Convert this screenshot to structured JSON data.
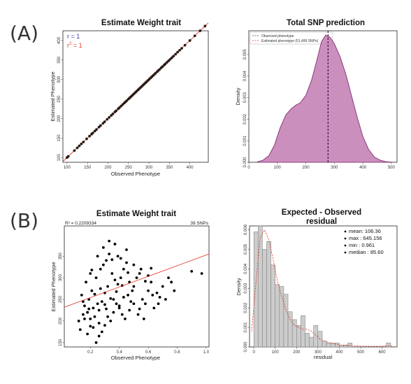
{
  "panels": {
    "a": "(A)",
    "b": "(B)"
  },
  "colors": {
    "red": "#e3412f",
    "dots": "#2b1a14",
    "purple": "#8b3b7a",
    "purplefill": "#b96aa8",
    "grey": "#cccccc",
    "annA": "#3b3bb0"
  },
  "chart_data": [
    {
      "id": "a1",
      "type": "scatter",
      "title": "Estimate Weight trait",
      "xlabel": "Observed Phenotype",
      "ylabel": "Estimated Phenotype",
      "xlim": [
        90,
        445
      ],
      "ylim": [
        88,
        425
      ],
      "xticks": [
        100,
        150,
        200,
        250,
        300,
        350,
        400
      ],
      "yticks": [
        100,
        150,
        200,
        250,
        300,
        350,
        400
      ],
      "annotations": {
        "r": "r = 1",
        "r2": "r",
        "r2_sup": "2",
        "r2_val": " = 1"
      },
      "fit_line": {
        "from": [
          90,
          90
        ],
        "to": [
          445,
          445
        ]
      },
      "points": [
        100,
        103,
        118,
        125,
        130,
        135,
        140,
        148,
        155,
        160,
        163,
        168,
        172,
        178,
        182,
        188,
        192,
        198,
        203,
        208,
        212,
        217,
        220,
        225,
        228,
        232,
        236,
        240,
        243,
        246,
        250,
        253,
        256,
        259,
        262,
        265,
        268,
        271,
        274,
        277,
        280,
        283,
        286,
        289,
        292,
        295,
        298,
        301,
        304,
        307,
        310,
        313,
        316,
        320,
        323,
        326,
        330,
        333,
        337,
        340,
        344,
        348,
        352,
        356,
        360,
        365,
        370,
        375,
        380,
        388,
        400,
        412,
        425,
        437
      ]
    },
    {
      "id": "a2",
      "type": "area",
      "title": "Total SNP prediction",
      "xlabel": "",
      "ylabel": "Density",
      "xlim": [
        0,
        520
      ],
      "ylim": [
        0,
        0.0061
      ],
      "xticks": [
        0,
        100,
        200,
        300,
        400,
        500
      ],
      "yticks": [
        0.0,
        0.001,
        0.002,
        0.003,
        0.004,
        0.005
      ],
      "ytick_labels": [
        "0.000",
        "0.001",
        "0.002",
        "0.003",
        "0.004",
        "0.005"
      ],
      "legend": [
        "Observed phenotype",
        "Estimated phenotype (51,499 SNPs)"
      ],
      "observed_line": 278,
      "x": [
        30,
        50,
        70,
        90,
        110,
        130,
        150,
        165,
        180,
        200,
        220,
        240,
        255,
        270,
        285,
        300,
        320,
        340,
        360,
        380,
        400,
        420,
        440,
        460,
        480,
        500
      ],
      "y": [
        2e-05,
        0.0001,
        0.0003,
        0.0008,
        0.0016,
        0.0022,
        0.0025,
        0.00265,
        0.00275,
        0.0031,
        0.0038,
        0.0048,
        0.0056,
        0.0059,
        0.0058,
        0.0055,
        0.0049,
        0.0041,
        0.0031,
        0.0021,
        0.0012,
        0.0006,
        0.00025,
        0.0001,
        3e-05,
        1e-05
      ]
    },
    {
      "id": "b1",
      "type": "scatter",
      "title": "Estimate Weight trait",
      "xlabel": "Observed Phenotype",
      "ylabel": "Estimated Phenotype",
      "header_left": "R² = 0.2209334",
      "header_right": "39 SNPs",
      "xlim": [
        0.02,
        1.02
      ],
      "ylim": [
        140,
        420
      ],
      "xticks": [
        0.2,
        0.4,
        0.6,
        0.8,
        1.0
      ],
      "xtick_labels": [
        "0.2",
        "0.4",
        "0.6",
        "0.8",
        "1.0"
      ],
      "yticks": [
        150,
        200,
        250,
        300,
        350
      ],
      "fit_line": {
        "from": [
          0.02,
          232
        ],
        "to": [
          1.02,
          355
        ]
      },
      "points": [
        [
          0.12,
          200
        ],
        [
          0.15,
          215
        ],
        [
          0.18,
          220
        ],
        [
          0.2,
          205
        ],
        [
          0.22,
          230
        ],
        [
          0.25,
          240
        ],
        [
          0.14,
          260
        ],
        [
          0.16,
          235
        ],
        [
          0.19,
          250
        ],
        [
          0.21,
          270
        ],
        [
          0.23,
          210
        ],
        [
          0.26,
          225
        ],
        [
          0.28,
          245
        ],
        [
          0.3,
          265
        ],
        [
          0.32,
          280
        ],
        [
          0.17,
          290
        ],
        [
          0.2,
          310
        ],
        [
          0.24,
          300
        ],
        [
          0.27,
          320
        ],
        [
          0.29,
          330
        ],
        [
          0.31,
          340
        ],
        [
          0.33,
          355
        ],
        [
          0.35,
          310
        ],
        [
          0.37,
          295
        ],
        [
          0.39,
          285
        ],
        [
          0.41,
          300
        ],
        [
          0.43,
          320
        ],
        [
          0.45,
          335
        ],
        [
          0.47,
          290
        ],
        [
          0.49,
          270
        ],
        [
          0.36,
          250
        ],
        [
          0.38,
          240
        ],
        [
          0.4,
          230
        ],
        [
          0.42,
          215
        ],
        [
          0.44,
          205
        ],
        [
          0.46,
          260
        ],
        [
          0.48,
          245
        ],
        [
          0.5,
          280
        ],
        [
          0.52,
          300
        ],
        [
          0.54,
          310
        ],
        [
          0.56,
          250
        ],
        [
          0.58,
          240
        ],
        [
          0.6,
          270
        ],
        [
          0.62,
          290
        ],
        [
          0.64,
          230
        ],
        [
          0.66,
          265
        ],
        [
          0.68,
          255
        ],
        [
          0.7,
          280
        ],
        [
          0.74,
          300
        ],
        [
          0.78,
          270
        ],
        [
          0.9,
          315
        ],
        [
          0.97,
          310
        ],
        [
          0.13,
          180
        ],
        [
          0.18,
          170
        ],
        [
          0.22,
          185
        ],
        [
          0.26,
          165
        ],
        [
          0.3,
          190
        ],
        [
          0.34,
          200
        ],
        [
          0.24,
          150
        ],
        [
          0.28,
          175
        ],
        [
          0.32,
          210
        ],
        [
          0.36,
          220
        ],
        [
          0.4,
          235
        ],
        [
          0.15,
          245
        ],
        [
          0.19,
          228
        ],
        [
          0.23,
          262
        ],
        [
          0.27,
          275
        ],
        [
          0.31,
          228
        ],
        [
          0.35,
          342
        ],
        [
          0.39,
          350
        ],
        [
          0.29,
          370
        ],
        [
          0.33,
          385
        ],
        [
          0.41,
          345
        ],
        [
          0.45,
          365
        ],
        [
          0.5,
          330
        ],
        [
          0.55,
          320
        ],
        [
          0.6,
          305
        ],
        [
          0.21,
          318
        ],
        [
          0.25,
          350
        ],
        [
          0.37,
          378
        ],
        [
          0.43,
          255
        ],
        [
          0.47,
          225
        ],
        [
          0.53,
          215
        ],
        [
          0.57,
          205
        ],
        [
          0.63,
          260
        ],
        [
          0.67,
          240
        ],
        [
          0.72,
          250
        ],
        [
          0.76,
          290
        ],
        [
          0.26,
          195
        ],
        [
          0.16,
          205
        ],
        [
          0.2,
          188
        ],
        [
          0.3,
          238
        ],
        [
          0.34,
          252
        ],
        [
          0.38,
          268
        ],
        [
          0.42,
          282
        ],
        [
          0.46,
          312
        ],
        [
          0.5,
          240
        ],
        [
          0.54,
          228
        ],
        [
          0.58,
          292
        ],
        [
          0.62,
          322
        ]
      ]
    },
    {
      "id": "b2",
      "type": "bar",
      "title": "Expected - Observed",
      "subtitle": "residual",
      "xlabel": "residual",
      "ylabel": "Density",
      "xlim": [
        -20,
        670
      ],
      "ylim": [
        0,
        0.0062
      ],
      "xticks": [
        0,
        100,
        200,
        300,
        400,
        500,
        600
      ],
      "yticks": [
        0.0,
        0.001,
        0.002,
        0.003,
        0.004,
        0.005,
        0.006
      ],
      "ytick_labels": [
        "0.000",
        "0.001",
        "0.002",
        "0.003",
        "0.004",
        "0.005",
        "0.006"
      ],
      "stats": [
        "mean: 106.36",
        "max : 645.156",
        "min : 0.961",
        "median : 85.60"
      ],
      "bin_width": 20,
      "bins_start": 0,
      "values": [
        0.0059,
        0.0062,
        0.005,
        0.0054,
        0.0042,
        0.0032,
        0.0031,
        0.0027,
        0.0018,
        0.0014,
        0.0011,
        0.0016,
        0.0007,
        0.0005,
        0.0011,
        0.0008,
        0.0003,
        0.0002,
        0.0002,
        0.0002,
        0.0001,
        0.0001,
        0.0002,
        0,
        0,
        0,
        0,
        0,
        0,
        0,
        0,
        0.0002
      ],
      "density_x": [
        -10,
        10,
        30,
        50,
        70,
        90,
        110,
        130,
        150,
        170,
        190,
        210,
        230,
        250,
        270,
        290,
        310,
        330,
        360,
        400,
        450,
        500,
        550,
        600,
        650
      ],
      "density_y": [
        0.0008,
        0.0033,
        0.0056,
        0.006,
        0.0055,
        0.0045,
        0.0034,
        0.0026,
        0.0019,
        0.0014,
        0.0011,
        0.001,
        0.0009,
        0.0009,
        0.0008,
        0.0006,
        0.0004,
        0.0003,
        0.0002,
        0.0001,
        7e-05,
        4e-05,
        3e-05,
        4e-05,
        6e-05
      ]
    }
  ]
}
